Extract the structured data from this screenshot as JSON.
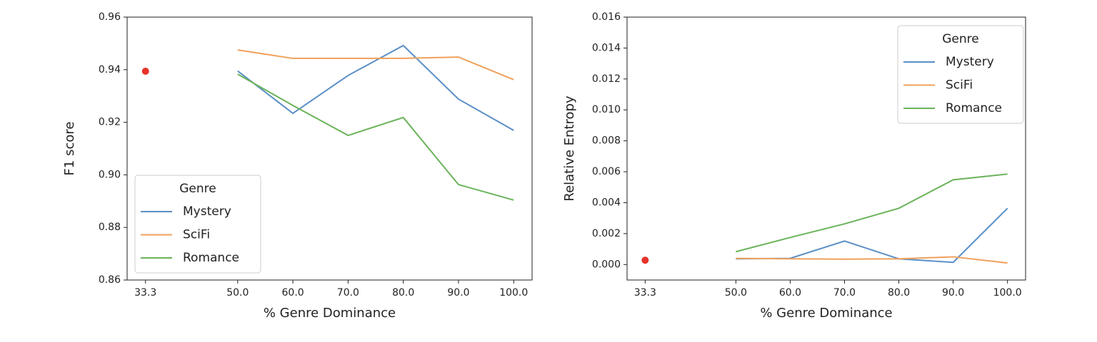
{
  "chart_data": [
    {
      "type": "line",
      "ylabel": "F1 score",
      "xlabel": "% Genre Dominance",
      "x": [
        50,
        60,
        70,
        80,
        90,
        100
      ],
      "series": [
        {
          "name": "Mystery",
          "color": "#5a8fc6",
          "values": [
            0.9395,
            0.9234,
            0.9378,
            0.9492,
            0.9288,
            0.9169
          ]
        },
        {
          "name": "SciFi",
          "color": "#f0a05a",
          "values": [
            0.9475,
            0.9443,
            0.9443,
            0.9443,
            0.9448,
            0.9362
          ]
        },
        {
          "name": "Romance",
          "color": "#6ab35a",
          "values": [
            0.9383,
            0.9264,
            0.915,
            0.9218,
            0.8963,
            0.8904
          ]
        }
      ],
      "point": {
        "x": 33.3,
        "y": 0.9394,
        "color": "#e8332a"
      },
      "xlim": [
        29.97,
        103.33
      ],
      "xticks": [
        33.3,
        {
          "value": 50,
          "label": "50.0"
        },
        {
          "value": 60,
          "label": "60.0"
        },
        {
          "value": 70,
          "label": "70.0"
        },
        {
          "value": 80,
          "label": "80.0"
        },
        {
          "value": 90,
          "label": "90.0"
        },
        {
          "value": 100,
          "label": "100.0"
        }
      ],
      "ylim": [
        0.86,
        0.96
      ],
      "yticks": [
        0.86,
        0.88,
        {
          "value": 0.9,
          "label": "0.90"
        },
        0.92,
        0.94,
        0.96
      ],
      "legend": {
        "title": "Genre",
        "loc": "lower left"
      }
    },
    {
      "type": "line",
      "ylabel": "Relative Entropy",
      "xlabel": "% Genre Dominance",
      "x": [
        50,
        60,
        70,
        80,
        90,
        100
      ],
      "series": [
        {
          "name": "Mystery",
          "color": "#5a8fc6",
          "values": [
            0.00037,
            0.0004,
            0.00152,
            0.00037,
            0.00014,
            0.00364
          ]
        },
        {
          "name": "SciFi",
          "color": "#f0a05a",
          "values": [
            0.0004,
            0.00037,
            0.00035,
            0.00037,
            0.0005,
            0.0001
          ]
        },
        {
          "name": "Romance",
          "color": "#6ab35a",
          "values": [
            0.00083,
            0.00175,
            0.00263,
            0.00364,
            0.00548,
            0.00585
          ]
        }
      ],
      "point": {
        "x": 33.3,
        "y": 0.00028,
        "color": "#e8332a"
      },
      "xlim": [
        29.97,
        103.33
      ],
      "xticks": [
        33.3,
        {
          "value": 50,
          "label": "50.0"
        },
        {
          "value": 60,
          "label": "60.0"
        },
        {
          "value": 70,
          "label": "70.0"
        },
        {
          "value": 80,
          "label": "80.0"
        },
        {
          "value": 90,
          "label": "90.0"
        },
        {
          "value": 100,
          "label": "100.0"
        }
      ],
      "ylim": [
        -0.001,
        0.016
      ],
      "yticks": [
        {
          "value": 0,
          "label": "0.000"
        },
        0.002,
        0.004,
        0.006,
        0.008,
        {
          "value": 0.01,
          "label": "0.010"
        },
        0.012,
        0.014,
        0.016
      ],
      "legend": {
        "title": "Genre",
        "loc": "upper right"
      }
    }
  ]
}
